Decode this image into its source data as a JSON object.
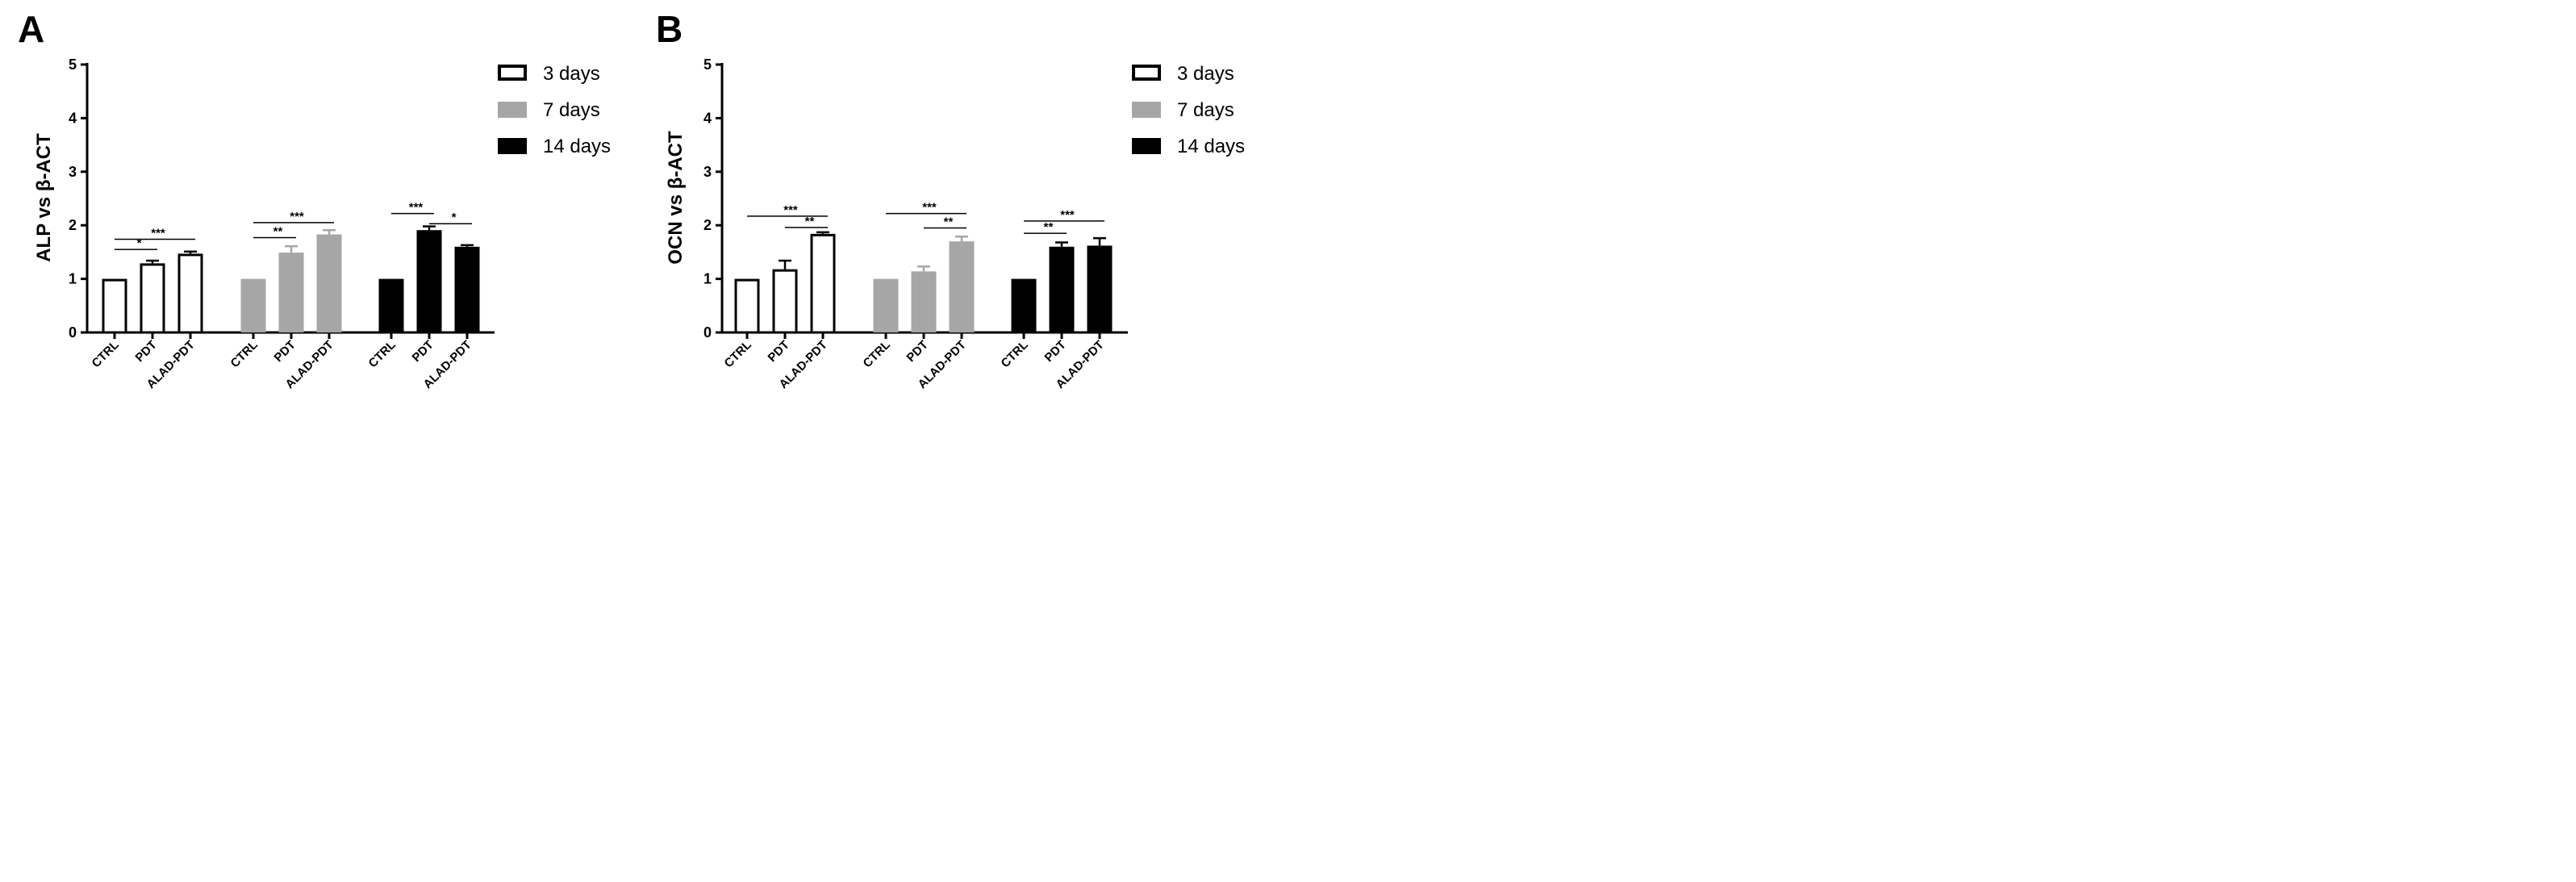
{
  "chart_data": [
    {
      "type": "bar",
      "panel": "A",
      "ylabel": "ALP vs β-ACT",
      "ylim": [
        0,
        5
      ],
      "yticks": [
        "0",
        "1",
        "2",
        "3",
        "4",
        "5"
      ],
      "categories": [
        "CTRL",
        "PDT",
        "ALAD-PDT"
      ],
      "series": [
        {
          "name": "3 days",
          "values": [
            1.0,
            1.29,
            1.47
          ],
          "errors": [
            0.0,
            0.05,
            0.04
          ]
        },
        {
          "name": "7 days",
          "values": [
            1.0,
            1.49,
            1.83
          ],
          "errors": [
            0.0,
            0.12,
            0.08
          ]
        },
        {
          "name": "14 days",
          "values": [
            1.0,
            1.91,
            1.6
          ],
          "errors": [
            0.0,
            0.07,
            0.03
          ]
        }
      ],
      "significance": [
        {
          "series": 0,
          "from": 0,
          "to": 1,
          "y": 1.55,
          "label": "*"
        },
        {
          "series": 0,
          "from": 0,
          "to": 2,
          "y": 1.74,
          "label": "***"
        },
        {
          "series": 1,
          "from": 0,
          "to": 1,
          "y": 1.77,
          "label": "**"
        },
        {
          "series": 1,
          "from": 0,
          "to": 2,
          "y": 2.05,
          "label": "***"
        },
        {
          "series": 2,
          "from": 0,
          "to": 1,
          "y": 2.22,
          "label": "***"
        },
        {
          "series": 2,
          "from": 1,
          "to": 2,
          "y": 2.03,
          "label": "*"
        }
      ],
      "legend_position": "top-right"
    },
    {
      "type": "bar",
      "panel": "B",
      "ylabel": "OCN vs β-ACT",
      "ylim": [
        0,
        5
      ],
      "yticks": [
        "0",
        "1",
        "2",
        "3",
        "4",
        "5"
      ],
      "categories": [
        "CTRL",
        "PDT",
        "ALAD-PDT"
      ],
      "series": [
        {
          "name": "3 days",
          "values": [
            1.0,
            1.18,
            1.84
          ],
          "errors": [
            0.0,
            0.16,
            0.03
          ]
        },
        {
          "name": "7 days",
          "values": [
            1.0,
            1.14,
            1.7
          ],
          "errors": [
            0.0,
            0.09,
            0.09
          ]
        },
        {
          "name": "14 days",
          "values": [
            1.0,
            1.6,
            1.62
          ],
          "errors": [
            0.0,
            0.08,
            0.14
          ]
        }
      ],
      "significance": [
        {
          "series": 0,
          "from": 0,
          "to": 2,
          "y": 2.17,
          "label": "***"
        },
        {
          "series": 0,
          "from": 1,
          "to": 2,
          "y": 1.96,
          "label": "**"
        },
        {
          "series": 1,
          "from": 0,
          "to": 2,
          "y": 2.22,
          "label": "***"
        },
        {
          "series": 1,
          "from": 1,
          "to": 2,
          "y": 1.95,
          "label": "**"
        },
        {
          "series": 2,
          "from": 0,
          "to": 1,
          "y": 1.85,
          "label": "**"
        },
        {
          "series": 2,
          "from": 0,
          "to": 2,
          "y": 2.08,
          "label": "***"
        }
      ],
      "legend_position": "top-right"
    }
  ],
  "colors": {
    "series_fill": [
      "#ffffff",
      "#a6a6a6",
      "#000000"
    ],
    "series_stroke": [
      "#000000",
      "#a6a6a6",
      "#000000"
    ],
    "axis": "#000000"
  }
}
